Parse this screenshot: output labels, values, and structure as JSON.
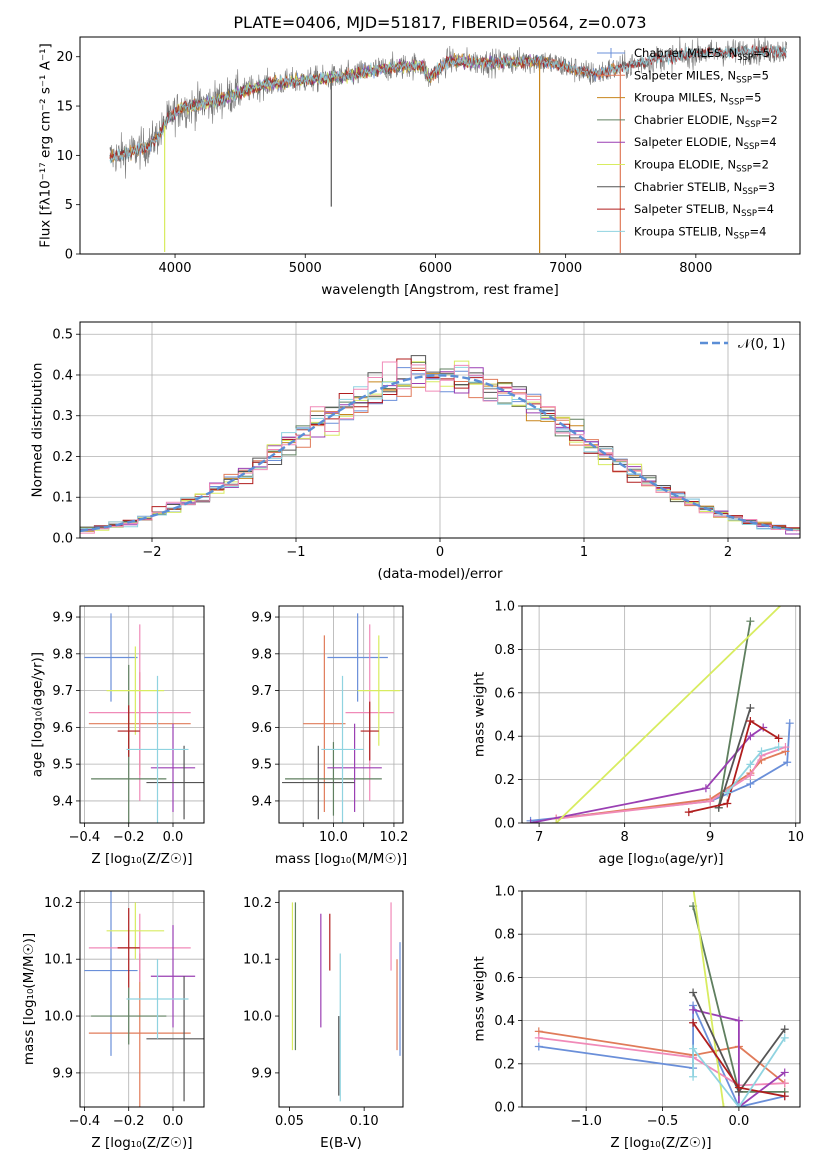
{
  "title": "PLATE=0406, MJD=51817, FIBERID=0564, z=0.073",
  "chart_data": [
    {
      "id": "spectrum",
      "type": "line",
      "xlabel": "wavelength [Angstrom, rest frame]",
      "ylabel": "Flux [fλ10⁻¹⁷ erg cm⁻² s⁻¹ A⁻¹]",
      "xlim": [
        3270,
        8800
      ],
      "ylim": [
        0,
        22
      ],
      "xticks": [
        4000,
        5000,
        6000,
        7000,
        8000
      ],
      "yticks": [
        0,
        5,
        10,
        15,
        20
      ],
      "grid": false,
      "legend_position": "top-right",
      "continuum": {
        "x": [
          3500,
          3700,
          3800,
          3900,
          3950,
          4050,
          4150,
          4300,
          4450,
          4700,
          5000,
          5300,
          5600,
          5900,
          5950,
          6100,
          6400,
          6800,
          7000,
          7200,
          7400,
          7700,
          8000,
          8300,
          8700
        ],
        "y": [
          9.8,
          10.5,
          11.0,
          12.5,
          13.8,
          14.8,
          15.0,
          15.5,
          16.2,
          17.2,
          17.6,
          18.0,
          18.8,
          19.2,
          17.8,
          19.6,
          19.4,
          19.6,
          19.0,
          18.2,
          18.8,
          19.8,
          20.3,
          20.5,
          20.6
        ]
      },
      "series": [
        {
          "name": "Chabrier MILES, N$_{SSP}$=5",
          "label_main": "Chabrier MILES, N",
          "label_sub": "SSP",
          "label_tail": "=5",
          "color": "#6a8fd9",
          "marker": "+",
          "xmin": 3500,
          "xmax": 7400
        },
        {
          "name": "Salpeter MILES, N$_{SSP}$=5",
          "label_main": "Salpeter MILES, N",
          "label_sub": "SSP",
          "label_tail": "=5",
          "color": "#e07b5a",
          "marker": "",
          "xmin": 3500,
          "xmax": 7400
        },
        {
          "name": "Kroupa MILES, N$_{SSP}$=5",
          "label_main": "Kroupa MILES, N",
          "label_sub": "SSP",
          "label_tail": "=5",
          "color": "#c8861d",
          "marker": "",
          "xmin": 3500,
          "xmax": 7400
        },
        {
          "name": "Chabrier ELODIE, N$_{SSP}$=2",
          "label_main": "Chabrier ELODIE, N",
          "label_sub": "SSP",
          "label_tail": "=2",
          "color": "#5f7f5f",
          "marker": "",
          "xmin": 3900,
          "xmax": 6800
        },
        {
          "name": "Salpeter ELODIE, N$_{SSP}$=4",
          "label_main": "Salpeter ELODIE, N",
          "label_sub": "SSP",
          "label_tail": "=4",
          "color": "#9a3fb3",
          "marker": "",
          "xmin": 3900,
          "xmax": 6800
        },
        {
          "name": "Kroupa ELODIE, N$_{SSP}$=2",
          "label_main": "Kroupa ELODIE, N",
          "label_sub": "SSP",
          "label_tail": "=2",
          "color": "#d8ec60",
          "marker": "",
          "xmin": 3900,
          "xmax": 6800
        },
        {
          "name": "Chabrier STELIB, N$_{SSP}$=3",
          "label_main": "Chabrier STELIB, N",
          "label_sub": "SSP",
          "label_tail": "=3",
          "color": "#555555",
          "marker": "",
          "xmin": 3500,
          "xmax": 8700
        },
        {
          "name": "Salpeter STELIB, N$_{SSP}$=4",
          "label_main": "Salpeter STELIB, N",
          "label_sub": "SSP",
          "label_tail": "=4",
          "color": "#b01e1e",
          "marker": "",
          "xmin": 3500,
          "xmax": 8700
        },
        {
          "name": "Kroupa STELIB, N$_{SSP}$=4",
          "label_main": "Kroupa STELIB, N",
          "label_sub": "SSP",
          "label_tail": "=4",
          "color": "#8fd3e0",
          "marker": "",
          "xmin": 3500,
          "xmax": 8700
        }
      ],
      "spikes": [
        {
          "x": 3920,
          "y": 0.2,
          "color": "#d8ec60"
        },
        {
          "x": 5200,
          "y": 4.8,
          "color": "#555555"
        },
        {
          "x": 6800,
          "y": 0.1,
          "color": "#c8861d"
        },
        {
          "x": 7420,
          "y": 0.1,
          "color": "#e07b5a"
        }
      ]
    },
    {
      "id": "residual-histogram",
      "type": "histogram",
      "xlabel": "(data-model)/error",
      "ylabel": "Normed distribution",
      "xlim": [
        -2.5,
        2.5
      ],
      "ylim": [
        0,
        0.53
      ],
      "xticks": [
        -2,
        -1,
        0,
        1,
        2
      ],
      "yticks": [
        0.0,
        0.1,
        0.2,
        0.3,
        0.4,
        0.5
      ],
      "grid": true,
      "legend_position": "top-right",
      "reference": {
        "name": "𝒩(0, 1)",
        "color": "#5b8ed6",
        "style": "dashed"
      },
      "bin_width": 0.1,
      "series_colors": [
        "#6a8fd9",
        "#e07b5a",
        "#c8861d",
        "#5f7f5f",
        "#9a3fb3",
        "#d8ec60",
        "#555555",
        "#b01e1e",
        "#8fd3e0",
        "#f08ab8"
      ]
    },
    {
      "id": "age-vs-z",
      "type": "errorbar",
      "xlabel": "Z [log₁₀(Z/Z☉)]",
      "ylabel": "age  [log₁₀(age/yr)]",
      "xlim": [
        -0.42,
        0.14
      ],
      "ylim": [
        9.34,
        9.93
      ],
      "xticks": [
        -0.4,
        -0.2,
        0.0
      ],
      "yticks": [
        9.4,
        9.5,
        9.6,
        9.7,
        9.8,
        9.9
      ],
      "grid": true,
      "points": [
        {
          "x": -0.28,
          "xerr": 0.12,
          "y": 9.79,
          "yerr": 0.12,
          "color": "#6a8fd9"
        },
        {
          "x": -0.15,
          "xerr": 0.23,
          "y": 9.61,
          "yerr": 0.14,
          "color": "#e07b5a"
        },
        {
          "x": -0.15,
          "xerr": 0.23,
          "y": 9.64,
          "yerr": 0.24,
          "color": "#f08ab8"
        },
        {
          "x": -0.2,
          "xerr": 0.17,
          "y": 9.46,
          "yerr": 0.31,
          "color": "#5f7f5f"
        },
        {
          "x": 0.0,
          "xerr": 0.1,
          "y": 9.49,
          "yerr": 0.12,
          "color": "#9a3fb3"
        },
        {
          "x": -0.17,
          "xerr": 0.13,
          "y": 9.7,
          "yerr": 0.12,
          "color": "#d8ec60"
        },
        {
          "x": 0.05,
          "xerr": 0.17,
          "y": 9.45,
          "yerr": 0.1,
          "color": "#555555"
        },
        {
          "x": -0.2,
          "xerr": 0.05,
          "y": 9.59,
          "yerr": 0.07,
          "color": "#b01e1e"
        },
        {
          "x": -0.07,
          "xerr": 0.14,
          "y": 9.54,
          "yerr": 0.2,
          "color": "#8fd3e0"
        }
      ]
    },
    {
      "id": "age-vs-mass",
      "type": "errorbar",
      "xlabel": "mass [log₁₀(M/M☉)]",
      "ylabel": "",
      "xlim": [
        9.82,
        10.23
      ],
      "ylim": [
        9.34,
        9.93
      ],
      "xticks": [
        9.9,
        10.0,
        10.1,
        10.2
      ],
      "xticklabels": [
        "",
        "10.0",
        "",
        "10.2"
      ],
      "yticks": [
        9.4,
        9.5,
        9.6,
        9.7,
        9.8,
        9.9
      ],
      "grid": true,
      "points": [
        {
          "x": 10.08,
          "xerr": 0.1,
          "y": 9.79,
          "yerr": 0.12,
          "color": "#6a8fd9"
        },
        {
          "x": 9.97,
          "xerr": 0.07,
          "y": 9.61,
          "yerr": 0.24,
          "color": "#e07b5a"
        },
        {
          "x": 10.12,
          "xerr": 0.08,
          "y": 9.64,
          "yerr": 0.24,
          "color": "#f08ab8"
        },
        {
          "x": 10.0,
          "xerr": 0.16,
          "y": 9.46,
          "yerr": 0.1,
          "color": "#5f7f5f"
        },
        {
          "x": 10.07,
          "xerr": 0.09,
          "y": 9.49,
          "yerr": 0.12,
          "color": "#9a3fb3"
        },
        {
          "x": 10.15,
          "xerr": 0.07,
          "y": 9.7,
          "yerr": 0.15,
          "color": "#d8ec60"
        },
        {
          "x": 9.95,
          "xerr": 0.12,
          "y": 9.45,
          "yerr": 0.1,
          "color": "#555555"
        },
        {
          "x": 10.12,
          "xerr": 0.03,
          "y": 9.59,
          "yerr": 0.08,
          "color": "#b01e1e"
        },
        {
          "x": 10.03,
          "xerr": 0.07,
          "y": 9.54,
          "yerr": 0.2,
          "color": "#8fd3e0"
        }
      ]
    },
    {
      "id": "weight-vs-age",
      "type": "line",
      "xlabel": "age  [log₁₀(age/yr)]",
      "ylabel": "mass weight",
      "xlim": [
        6.8,
        10.05
      ],
      "ylim": [
        0,
        1.0
      ],
      "xticks": [
        7,
        8,
        9,
        10
      ],
      "yticks": [
        0.0,
        0.2,
        0.4,
        0.6,
        0.8,
        1.0
      ],
      "grid": true,
      "series": [
        {
          "color": "#6a8fd9",
          "x": [
            6.9,
            9.0,
            9.47,
            9.9,
            9.93
          ],
          "y": [
            0.01,
            0.1,
            0.18,
            0.28,
            0.46
          ]
        },
        {
          "color": "#e07b5a",
          "x": [
            7.2,
            9.0,
            9.47,
            9.6,
            9.88
          ],
          "y": [
            0.02,
            0.11,
            0.23,
            0.29,
            0.33
          ]
        },
        {
          "color": "#f08ab8",
          "x": [
            7.2,
            9.0,
            9.47,
            9.6,
            9.88
          ],
          "y": [
            0.02,
            0.1,
            0.22,
            0.31,
            0.35
          ]
        },
        {
          "color": "#5f7f5f",
          "x": [
            9.1,
            9.47
          ],
          "y": [
            0.07,
            0.93
          ]
        },
        {
          "color": "#9a3fb3",
          "x": [
            6.9,
            8.95,
            9.47,
            9.62
          ],
          "y": [
            0.0,
            0.16,
            0.4,
            0.44
          ]
        },
        {
          "color": "#d8ec60",
          "x": [
            7.2,
            9.87
          ],
          "y": [
            0.0,
            1.02
          ]
        },
        {
          "color": "#555555",
          "x": [
            9.1,
            9.47
          ],
          "y": [
            0.07,
            0.53
          ]
        },
        {
          "color": "#b01e1e",
          "x": [
            8.75,
            9.2,
            9.47,
            9.8
          ],
          "y": [
            0.05,
            0.09,
            0.47,
            0.39
          ]
        },
        {
          "color": "#8fd3e0",
          "x": [
            9.2,
            9.47,
            9.6,
            9.8
          ],
          "y": [
            0.14,
            0.27,
            0.33,
            0.35
          ]
        }
      ]
    },
    {
      "id": "mass-vs-z",
      "type": "errorbar",
      "xlabel": "Z [log₁₀(Z/Z☉)]",
      "ylabel": "mass [log₁₀(M/M☉)]",
      "xlim": [
        -0.42,
        0.14
      ],
      "ylim": [
        9.84,
        10.22
      ],
      "xticks": [
        -0.4,
        -0.2,
        0.0
      ],
      "yticks": [
        9.9,
        10.0,
        10.1,
        10.2
      ],
      "grid": true,
      "points": [
        {
          "x": -0.28,
          "xerr": 0.12,
          "y": 10.08,
          "yerr": 0.15,
          "color": "#6a8fd9"
        },
        {
          "x": -0.15,
          "xerr": 0.23,
          "y": 9.97,
          "yerr": 0.14,
          "color": "#e07b5a"
        },
        {
          "x": -0.15,
          "xerr": 0.23,
          "y": 10.12,
          "yerr": 0.06,
          "color": "#f08ab8"
        },
        {
          "x": -0.2,
          "xerr": 0.17,
          "y": 10.0,
          "yerr": 0.05,
          "color": "#5f7f5f"
        },
        {
          "x": 0.0,
          "xerr": 0.1,
          "y": 10.07,
          "yerr": 0.09,
          "color": "#9a3fb3"
        },
        {
          "x": -0.17,
          "xerr": 0.13,
          "y": 10.15,
          "yerr": 0.05,
          "color": "#d8ec60"
        },
        {
          "x": 0.05,
          "xerr": 0.17,
          "y": 9.96,
          "yerr": 0.11,
          "color": "#555555"
        },
        {
          "x": -0.2,
          "xerr": 0.05,
          "y": 10.12,
          "yerr": 0.07,
          "color": "#b01e1e"
        },
        {
          "x": -0.07,
          "xerr": 0.14,
          "y": 10.03,
          "yerr": 0.07,
          "color": "#8fd3e0"
        }
      ]
    },
    {
      "id": "mass-vs-ebv",
      "type": "errorbar",
      "xlabel": "E(B-V)",
      "ylabel": "",
      "xlim": [
        0.043,
        0.126
      ],
      "ylim": [
        9.84,
        10.22
      ],
      "xticks": [
        0.05,
        0.1
      ],
      "xticklabels": [
        "0.05",
        "0.10"
      ],
      "yticks": [
        9.9,
        10.0,
        10.1,
        10.2
      ],
      "grid": false,
      "points": [
        {
          "x": 0.124,
          "y": 10.03,
          "yerr": 0.1,
          "color": "#6a8fd9"
        },
        {
          "x": 0.122,
          "y": 10.02,
          "yerr": 0.08,
          "color": "#e07b5a"
        },
        {
          "x": 0.118,
          "y": 10.14,
          "yerr": 0.06,
          "color": "#f08ab8"
        },
        {
          "x": 0.054,
          "y": 10.07,
          "yerr": 0.13,
          "color": "#5f7f5f"
        },
        {
          "x": 0.071,
          "y": 10.08,
          "yerr": 0.1,
          "color": "#9a3fb3"
        },
        {
          "x": 0.052,
          "y": 10.07,
          "yerr": 0.13,
          "color": "#d8ec60"
        },
        {
          "x": 0.083,
          "y": 9.93,
          "yerr": 0.07,
          "color": "#555555"
        },
        {
          "x": 0.077,
          "y": 10.13,
          "yerr": 0.05,
          "color": "#b01e1e"
        },
        {
          "x": 0.084,
          "y": 9.98,
          "yerr": 0.13,
          "color": "#8fd3e0"
        }
      ]
    },
    {
      "id": "weight-vs-z",
      "type": "line",
      "xlabel": "Z [log₁₀(Z/Z☉)]",
      "ylabel": "mass weight",
      "xlim": [
        -1.42,
        0.4
      ],
      "ylim": [
        0,
        1.0
      ],
      "xticks": [
        -1.0,
        -0.5,
        0.0
      ],
      "yticks": [
        0.0,
        0.2,
        0.4,
        0.6,
        0.8,
        1.0
      ],
      "grid": true,
      "series": [
        {
          "color": "#6a8fd9",
          "x": [
            -1.31,
            -0.3,
            -0.3,
            0.0,
            0.3
          ],
          "y": [
            0.28,
            0.18,
            0.47,
            0.0,
            0.05
          ]
        },
        {
          "color": "#e07b5a",
          "x": [
            -1.31,
            -0.3,
            0.0,
            0.3
          ],
          "y": [
            0.35,
            0.24,
            0.28,
            0.11
          ]
        },
        {
          "color": "#f08ab8",
          "x": [
            -1.31,
            -0.3,
            0.0,
            0.3
          ],
          "y": [
            0.32,
            0.23,
            0.1,
            0.11
          ]
        },
        {
          "color": "#5f7f5f",
          "x": [
            -0.3,
            0.0,
            0.3
          ],
          "y": [
            0.93,
            0.07,
            0.07
          ]
        },
        {
          "color": "#9a3fb3",
          "x": [
            -0.3,
            0.0,
            0.0,
            0.3
          ],
          "y": [
            0.45,
            0.4,
            0.0,
            0.16
          ]
        },
        {
          "color": "#d8ec60",
          "x": [
            -0.3,
            -0.1
          ],
          "y": [
            1.02,
            0.0
          ]
        },
        {
          "color": "#555555",
          "x": [
            -0.3,
            0.0,
            0.3
          ],
          "y": [
            0.53,
            0.07,
            0.36
          ]
        },
        {
          "color": "#b01e1e",
          "x": [
            -0.3,
            0.0,
            0.3
          ],
          "y": [
            0.39,
            0.09,
            0.05
          ]
        },
        {
          "color": "#8fd3e0",
          "x": [
            -0.3,
            -0.3,
            0.0,
            0.3
          ],
          "y": [
            0.14,
            0.27,
            0.0,
            0.32
          ]
        }
      ]
    }
  ]
}
